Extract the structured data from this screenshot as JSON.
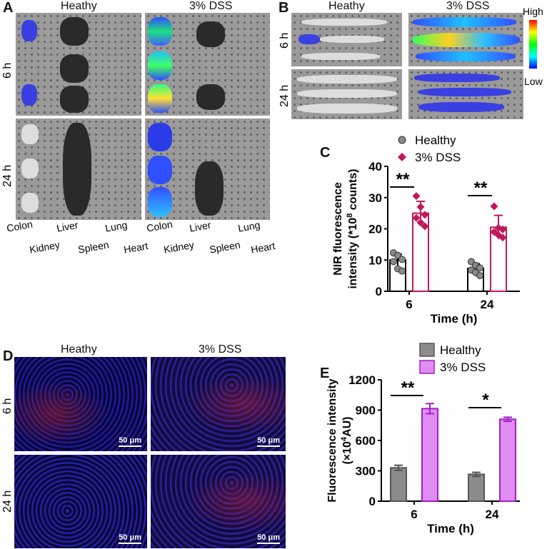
{
  "panel_a": {
    "label": "A",
    "col_titles": [
      "Heathy",
      "3% DSS"
    ],
    "row_labels": [
      "6 h",
      "24 h"
    ],
    "organs": [
      "Colon",
      "Kidney",
      "Liver",
      "Spleen",
      "Lung",
      "Heart"
    ]
  },
  "panel_b": {
    "label": "B",
    "col_titles": [
      "Heathy",
      "3% DSS"
    ],
    "row_labels": [
      "6 h",
      "24 h"
    ],
    "colorbar": {
      "high": "High",
      "low": "Low"
    }
  },
  "panel_d": {
    "label": "D",
    "col_titles": [
      "Heathy",
      "3% DSS"
    ],
    "row_labels": [
      "6 h",
      "24 h"
    ],
    "scale_bar": "50 μm"
  },
  "chart_data": [
    {
      "panel": "C",
      "type": "bar",
      "categories": [
        "6",
        "24"
      ],
      "xlabel": "Time (h)",
      "ylabel_line1": "NIR fluorescence",
      "ylabel_line2": "intensity (*10",
      "ylabel_sup": "8",
      "ylabel_end": " counts)",
      "ylim": [
        0,
        40
      ],
      "yticks": [
        "0",
        "10",
        "20",
        "30",
        "40"
      ],
      "legend": "top",
      "series": [
        {
          "name": "Healthy",
          "color": "#000000",
          "marker": "circle",
          "marker_color": "#8a8a8a",
          "values": [
            10,
            7.3
          ],
          "error": [
            1.8,
            1.5
          ],
          "points": [
            [
              12.3,
              11.5,
              10.2,
              9.5,
              7.2,
              6.5
            ],
            [
              9.5,
              8.3,
              7.5,
              6.8,
              6.0,
              5.0
            ]
          ]
        },
        {
          "name": "3% DSS",
          "color": "#c2185b",
          "marker": "diamond",
          "marker_color": "#c2185b",
          "values": [
            25,
            20.5
          ],
          "error": [
            3.8,
            3.8
          ],
          "points": [
            [
              30.5,
              27.0,
              24.5,
              23.5,
              22.0,
              20.8
            ],
            [
              27.2,
              20.3,
              19.8,
              19.0,
              18.0,
              17.2
            ]
          ]
        }
      ],
      "significance": [
        "**",
        "**"
      ]
    },
    {
      "panel": "E",
      "type": "bar",
      "categories": [
        "6",
        "24"
      ],
      "xlabel": "Time (h)",
      "ylabel_line1": "Fluorescence intensity",
      "ylabel_line2": "(×10",
      "ylabel_sup": "4",
      "ylabel_end": "AU)",
      "ylim": [
        0,
        1200
      ],
      "yticks": [
        "0",
        "300",
        "600",
        "900",
        "1200"
      ],
      "legend": "top",
      "series": [
        {
          "name": "Healthy",
          "color": "#8c8c8c",
          "edge": "#555555",
          "values": [
            330,
            265
          ],
          "error": [
            25,
            20
          ]
        },
        {
          "name": "3% DSS",
          "color": "#e08cf0",
          "edge": "#a020c0",
          "values": [
            915,
            810
          ],
          "error": [
            50,
            20
          ]
        }
      ],
      "significance": [
        "**",
        "*"
      ]
    }
  ]
}
